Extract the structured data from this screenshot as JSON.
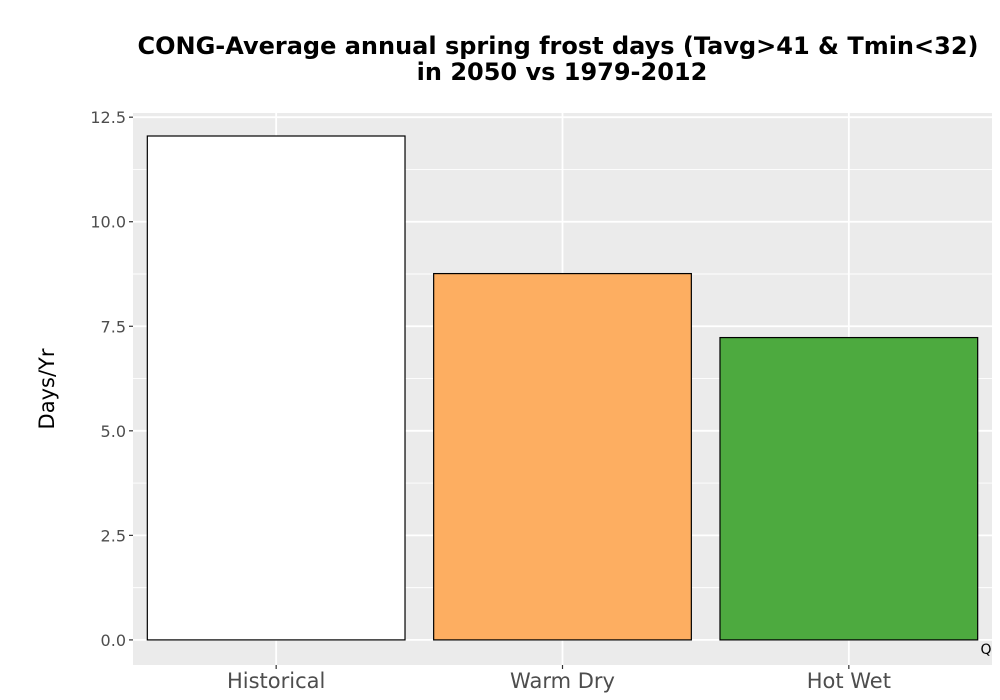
{
  "chart_data": {
    "type": "bar",
    "title_lines": [
      "CONG-Average annual spring frost days (Tavg>41 & Tmin<32)",
      "in 2050 vs 1979-2012"
    ],
    "xlabel": "",
    "ylabel": "Days/Yr",
    "categories": [
      "Historical",
      "Warm Dry",
      "Hot Wet"
    ],
    "values": [
      12.05,
      8.76,
      7.23
    ],
    "colors": [
      "#ffffff",
      "#fdae61",
      "#4daa3f"
    ],
    "bar_outline": "#000000",
    "ylim": [
      -0.6,
      12.6
    ],
    "yticks": [
      0.0,
      2.5,
      5.0,
      7.5,
      10.0,
      12.5
    ],
    "ytick_labels": [
      "0.0",
      "2.5",
      "5.0",
      "7.5",
      "10.0",
      "12.5"
    ],
    "grid": true,
    "panel_background": "#ebebeb",
    "grid_color": "#ffffff",
    "corner_annotation": "Q"
  }
}
